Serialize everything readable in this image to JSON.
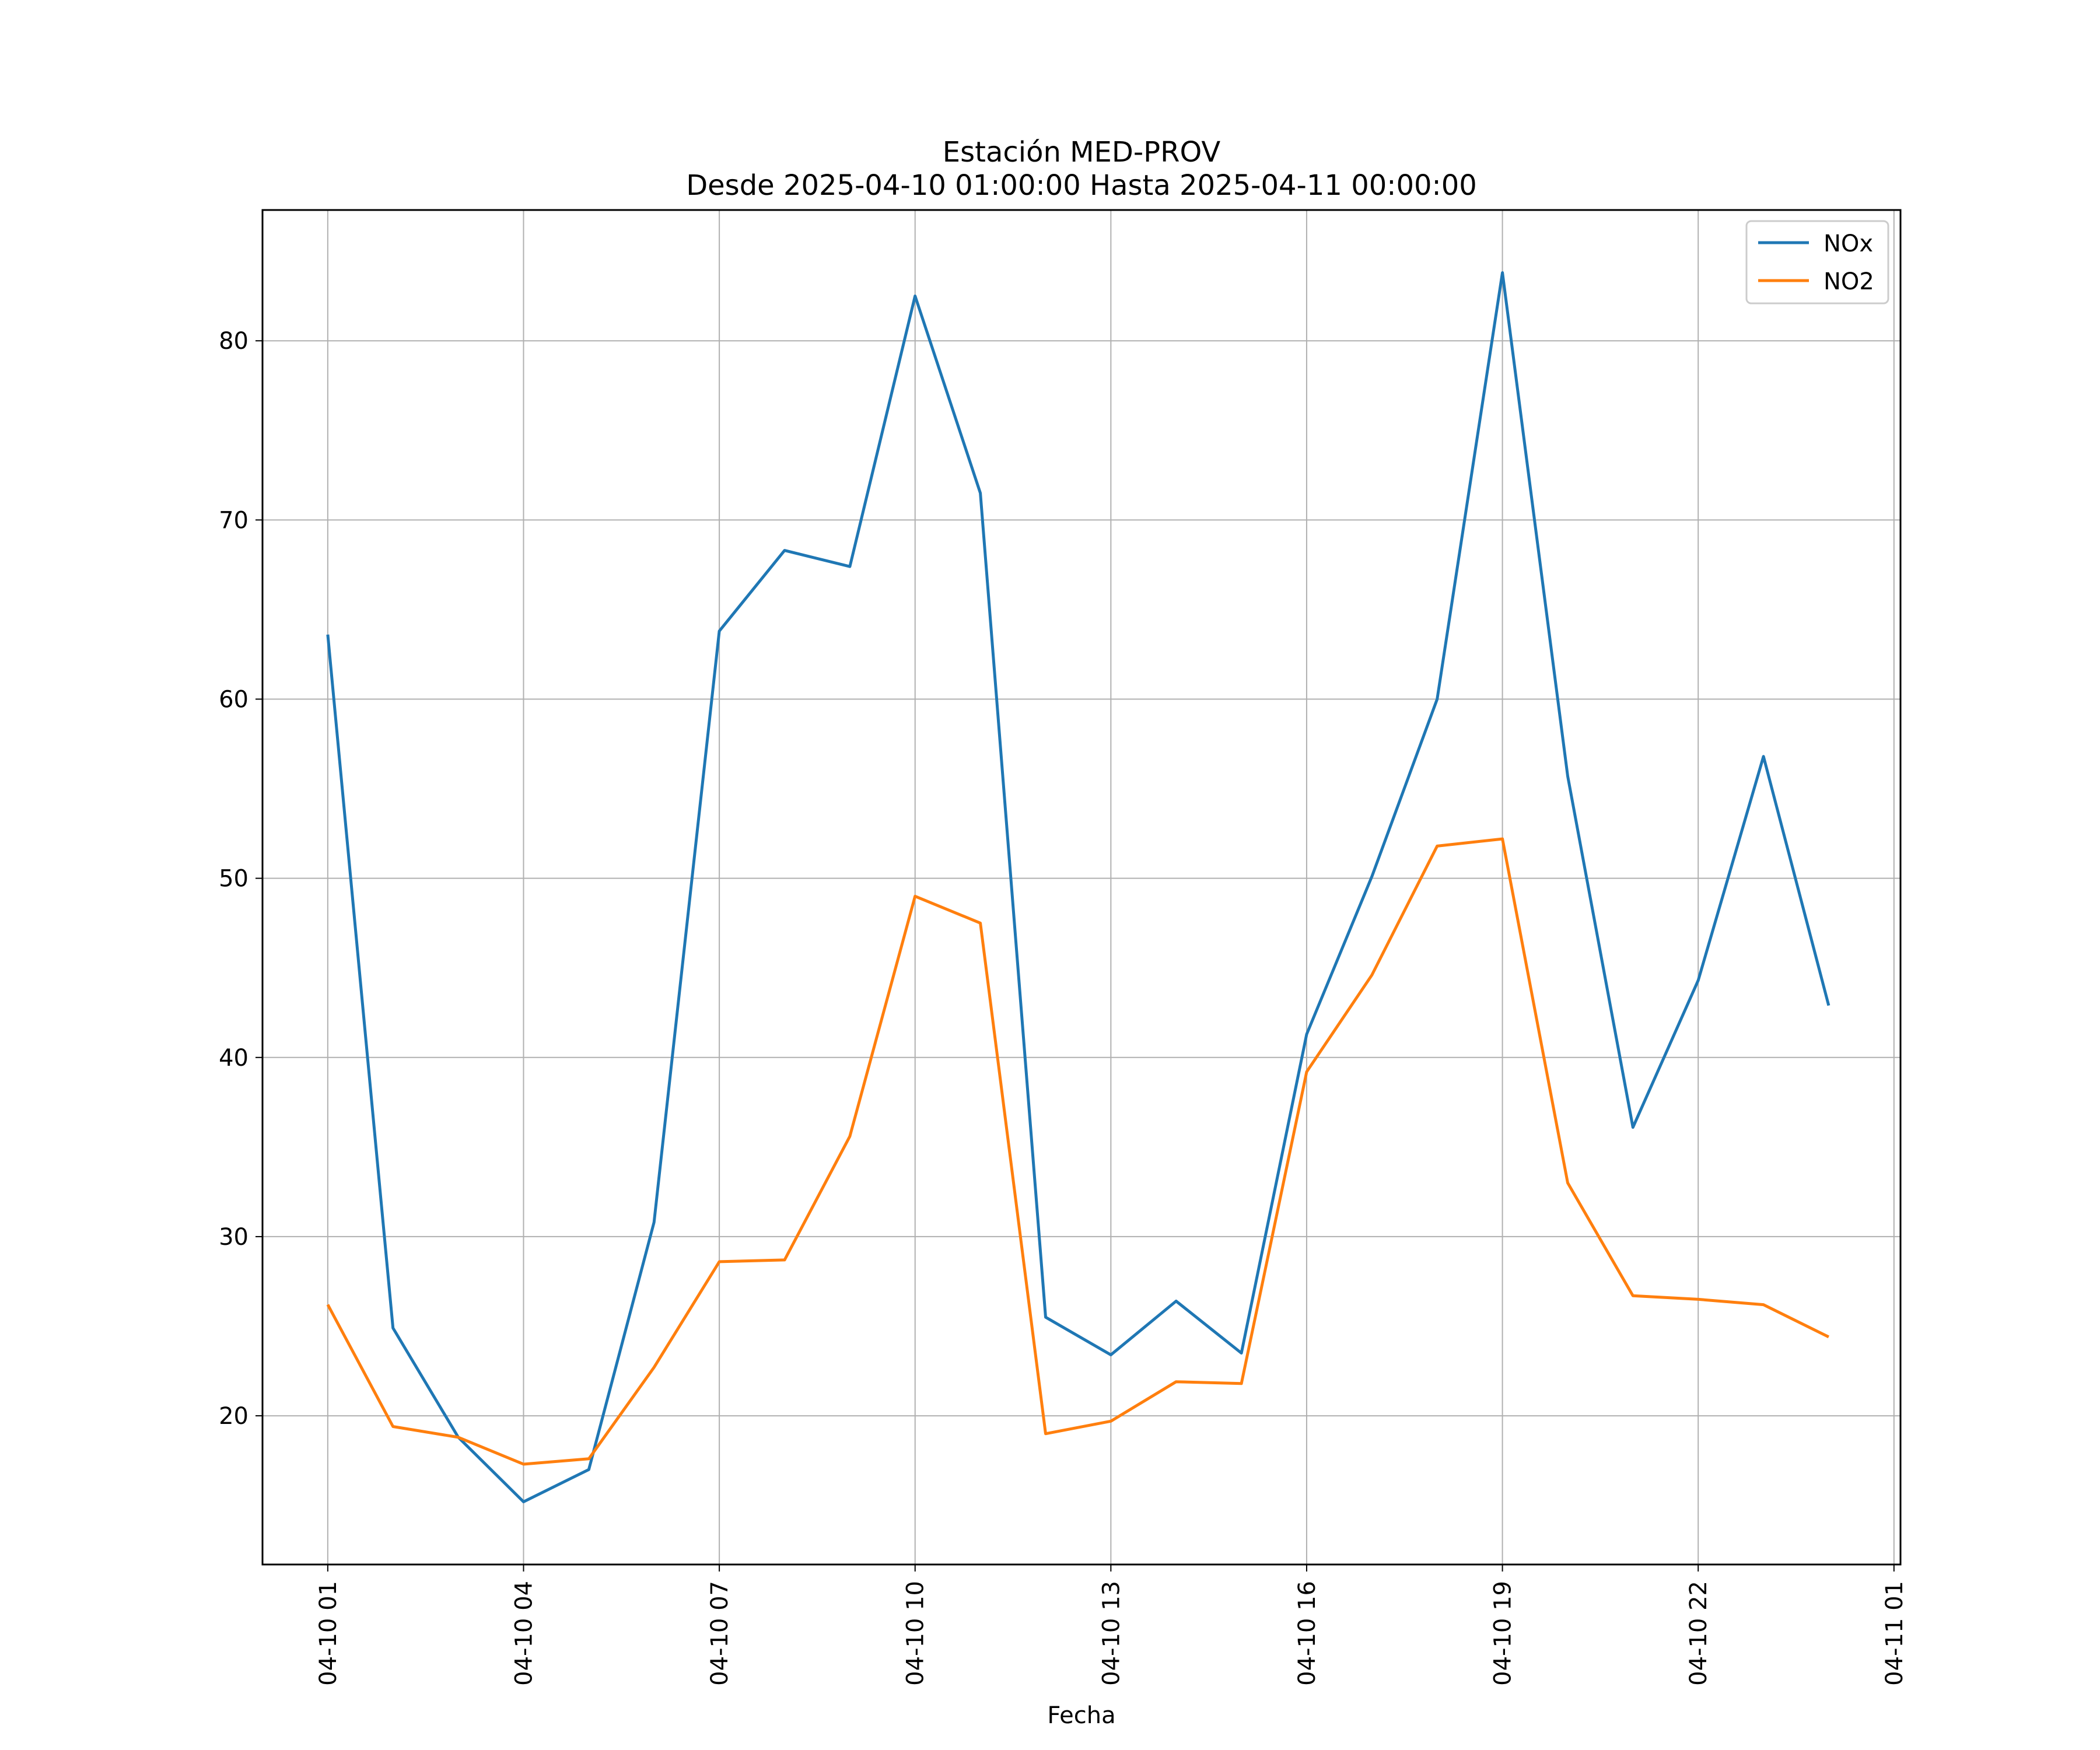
{
  "chart_data": {
    "type": "line",
    "title": "Estación MED-PROV",
    "subtitle": "Desde 2025-04-10 01:00:00 Hasta 2025-04-11 00:00:00",
    "xlabel": "Fecha",
    "ylabel": "",
    "x": [
      "2025-04-10 01:00",
      "2025-04-10 02:00",
      "2025-04-10 03:00",
      "2025-04-10 04:00",
      "2025-04-10 05:00",
      "2025-04-10 06:00",
      "2025-04-10 07:00",
      "2025-04-10 08:00",
      "2025-04-10 09:00",
      "2025-04-10 10:00",
      "2025-04-10 11:00",
      "2025-04-10 12:00",
      "2025-04-10 13:00",
      "2025-04-10 14:00",
      "2025-04-10 15:00",
      "2025-04-10 16:00",
      "2025-04-10 17:00",
      "2025-04-10 18:00",
      "2025-04-10 19:00",
      "2025-04-10 20:00",
      "2025-04-10 21:00",
      "2025-04-10 22:00",
      "2025-04-10 23:00",
      "2025-04-11 00:00"
    ],
    "xlim": [
      "2025-04-10 00:00",
      "2025-04-11 01:06"
    ],
    "x_ticks": [
      "04-10 01",
      "04-10 04",
      "04-10 07",
      "04-10 10",
      "04-10 13",
      "04-10 16",
      "04-10 19",
      "04-10 22",
      "04-11 01"
    ],
    "x_tick_values": [
      "2025-04-10 01:00",
      "2025-04-10 04:00",
      "2025-04-10 07:00",
      "2025-04-10 10:00",
      "2025-04-10 13:00",
      "2025-04-10 16:00",
      "2025-04-10 19:00",
      "2025-04-10 22:00",
      "2025-04-11 01:00"
    ],
    "ylim": [
      11.7,
      87.3
    ],
    "y_ticks": [
      20,
      30,
      40,
      50,
      60,
      70,
      80
    ],
    "grid": true,
    "legend": "top-right",
    "series": [
      {
        "name": "NOx",
        "color": "#1f77b4",
        "values": [
          63.6,
          24.9,
          18.8,
          15.2,
          17.0,
          30.8,
          63.8,
          68.3,
          67.4,
          82.5,
          71.5,
          25.5,
          23.4,
          26.4,
          23.5,
          41.3,
          50.1,
          60.0,
          83.8,
          55.7,
          36.1,
          44.3,
          56.8,
          42.9
        ]
      },
      {
        "name": "NO2",
        "color": "#ff7f0e",
        "values": [
          26.2,
          19.4,
          18.8,
          17.3,
          17.6,
          22.7,
          28.6,
          28.7,
          35.6,
          49.0,
          47.5,
          19.0,
          19.7,
          21.9,
          21.8,
          39.2,
          44.6,
          51.8,
          52.2,
          33.0,
          26.7,
          26.5,
          26.2,
          24.4
        ]
      }
    ]
  }
}
